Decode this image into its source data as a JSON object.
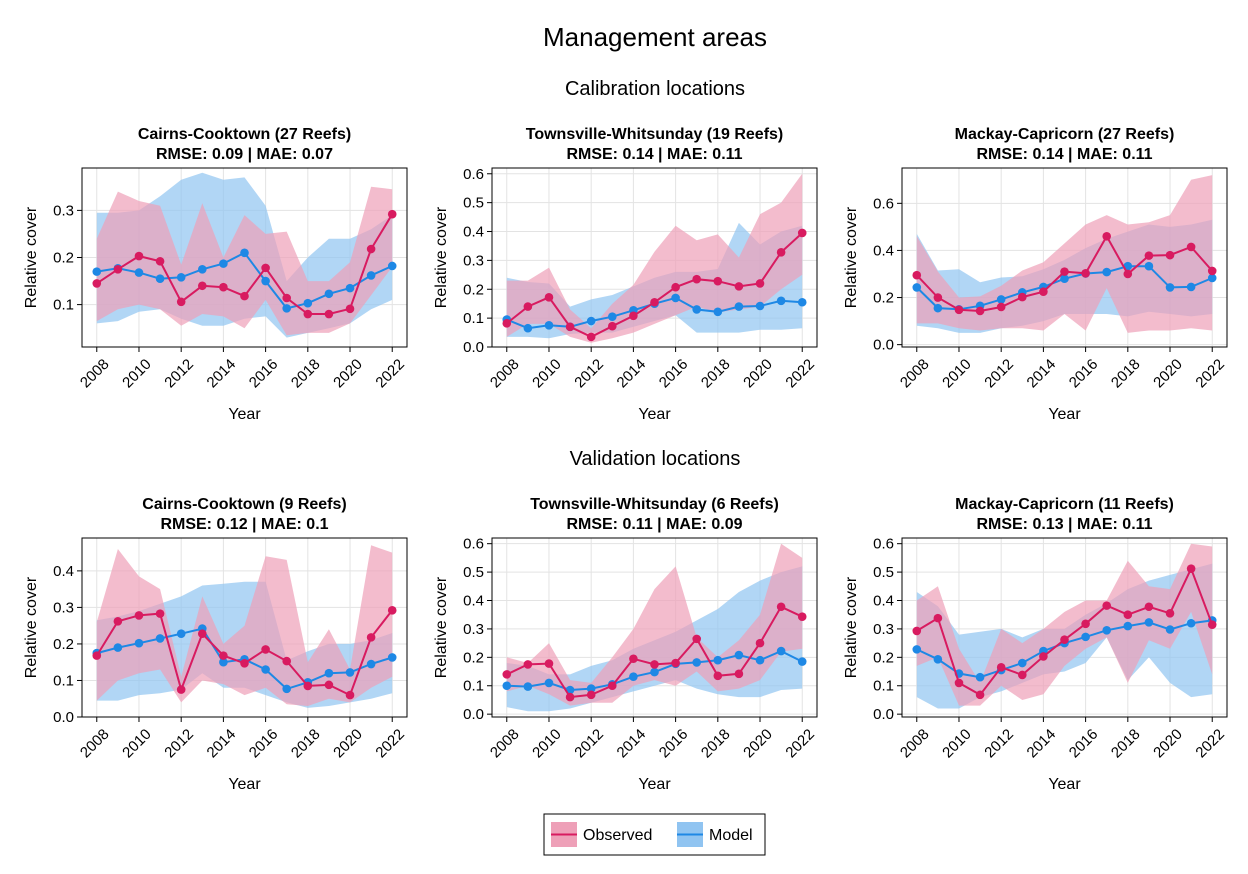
{
  "figure": {
    "title": "Management areas",
    "row_titles": [
      "Calibration locations",
      "Validation locations"
    ]
  },
  "colors": {
    "observed": "#d81b60",
    "observed_band": "#eea0b8",
    "model": "#1e88e5",
    "model_band": "#90c4f1",
    "grid": "#e3e3e3"
  },
  "legend": {
    "entries": [
      {
        "label": "Observed",
        "color": "#d81b60"
      },
      {
        "label": "Model",
        "color": "#1e88e5"
      }
    ]
  },
  "chart_data": [
    {
      "type": "line",
      "title": "Cairns-Cooktown (27 Reefs)",
      "subtitle": "RMSE: 0.09 | MAE: 0.07",
      "xlabel": "Year",
      "ylabel": "Relative cover",
      "xlim": [
        2007.3,
        2022.7
      ],
      "ylim": [
        0.01,
        0.39
      ],
      "yticks": [
        0.1,
        0.2,
        0.3
      ],
      "yticklabels": [
        "0.1",
        "0.2",
        "0.3"
      ],
      "xticks": [
        2008,
        2010,
        2012,
        2014,
        2016,
        2018,
        2020,
        2022
      ],
      "x": [
        2008,
        2009,
        2010,
        2011,
        2012,
        2013,
        2014,
        2015,
        2016,
        2017,
        2018,
        2019,
        2020,
        2021,
        2022
      ],
      "series": [
        {
          "name": "Observed",
          "values": [
            0.145,
            0.175,
            0.203,
            0.192,
            0.106,
            0.14,
            0.137,
            0.118,
            0.178,
            0.114,
            0.08,
            0.08,
            0.091,
            0.218,
            0.292
          ],
          "lower": [
            0.065,
            0.09,
            0.1,
            0.09,
            0.055,
            0.08,
            0.075,
            0.05,
            0.11,
            0.035,
            0.04,
            0.04,
            0.06,
            0.12,
            0.18
          ],
          "upper": [
            0.24,
            0.34,
            0.32,
            0.31,
            0.185,
            0.315,
            0.2,
            0.29,
            0.25,
            0.255,
            0.15,
            0.15,
            0.19,
            0.35,
            0.345
          ]
        },
        {
          "name": "Model",
          "values": [
            0.17,
            0.177,
            0.168,
            0.155,
            0.158,
            0.175,
            0.187,
            0.21,
            0.15,
            0.092,
            0.103,
            0.123,
            0.135,
            0.162,
            0.182
          ],
          "lower": [
            0.06,
            0.065,
            0.085,
            0.09,
            0.07,
            0.055,
            0.055,
            0.07,
            0.075,
            0.03,
            0.04,
            0.05,
            0.06,
            0.09,
            0.11
          ],
          "upper": [
            0.295,
            0.295,
            0.3,
            0.33,
            0.365,
            0.38,
            0.365,
            0.37,
            0.31,
            0.15,
            0.2,
            0.24,
            0.24,
            0.26,
            0.29
          ]
        }
      ]
    },
    {
      "type": "line",
      "title": "Townsville-Whitsunday (19 Reefs)",
      "subtitle": "RMSE: 0.14 | MAE: 0.11",
      "xlabel": "Year",
      "ylabel": "Relative cover",
      "xlim": [
        2007.3,
        2022.7
      ],
      "ylim": [
        0.0,
        0.62
      ],
      "yticks": [
        0.0,
        0.1,
        0.2,
        0.3,
        0.4,
        0.5,
        0.6
      ],
      "yticklabels": [
        "0.0",
        "0.1",
        "0.2",
        "0.3",
        "0.4",
        "0.5",
        "0.6"
      ],
      "xticks": [
        2008,
        2010,
        2012,
        2014,
        2016,
        2018,
        2020,
        2022
      ],
      "x": [
        2008,
        2009,
        2010,
        2011,
        2012,
        2013,
        2014,
        2015,
        2016,
        2017,
        2018,
        2019,
        2020,
        2021,
        2022
      ],
      "series": [
        {
          "name": "Observed",
          "values": [
            0.082,
            0.14,
            0.172,
            0.07,
            0.035,
            0.072,
            0.108,
            0.155,
            0.207,
            0.235,
            0.228,
            0.21,
            0.22,
            0.328,
            0.395
          ],
          "lower": [
            0.035,
            0.08,
            0.08,
            0.035,
            0.015,
            0.03,
            0.05,
            0.08,
            0.11,
            0.14,
            0.12,
            0.13,
            0.14,
            0.2,
            0.25
          ],
          "upper": [
            0.23,
            0.23,
            0.275,
            0.13,
            0.065,
            0.15,
            0.215,
            0.33,
            0.42,
            0.37,
            0.39,
            0.31,
            0.46,
            0.5,
            0.6
          ]
        },
        {
          "name": "Model",
          "values": [
            0.095,
            0.065,
            0.075,
            0.07,
            0.09,
            0.105,
            0.127,
            0.15,
            0.17,
            0.13,
            0.122,
            0.14,
            0.142,
            0.16,
            0.155
          ],
          "lower": [
            0.035,
            0.035,
            0.03,
            0.045,
            0.05,
            0.05,
            0.07,
            0.09,
            0.11,
            0.05,
            0.05,
            0.05,
            0.06,
            0.06,
            0.065
          ],
          "upper": [
            0.24,
            0.225,
            0.22,
            0.14,
            0.165,
            0.18,
            0.21,
            0.24,
            0.26,
            0.26,
            0.27,
            0.43,
            0.355,
            0.4,
            0.42
          ]
        }
      ]
    },
    {
      "type": "line",
      "title": "Mackay-Capricorn (27 Reefs)",
      "subtitle": "RMSE: 0.14 | MAE: 0.11",
      "xlabel": "Year",
      "ylabel": "Relative cover",
      "xlim": [
        2007.3,
        2022.7
      ],
      "ylim": [
        -0.01,
        0.75
      ],
      "yticks": [
        0.0,
        0.2,
        0.4,
        0.6
      ],
      "yticklabels": [
        "0.0",
        "0.2",
        "0.4",
        "0.6"
      ],
      "xticks": [
        2008,
        2010,
        2012,
        2014,
        2016,
        2018,
        2020,
        2022
      ],
      "x": [
        2008,
        2009,
        2010,
        2011,
        2012,
        2013,
        2014,
        2015,
        2016,
        2017,
        2018,
        2019,
        2020,
        2021,
        2022
      ],
      "series": [
        {
          "name": "Observed",
          "values": [
            0.295,
            0.2,
            0.148,
            0.143,
            0.16,
            0.202,
            0.225,
            0.31,
            0.303,
            0.46,
            0.3,
            0.378,
            0.38,
            0.415,
            0.313
          ],
          "lower": [
            0.09,
            0.09,
            0.07,
            0.06,
            0.07,
            0.07,
            0.06,
            0.13,
            0.06,
            0.24,
            0.05,
            0.06,
            0.06,
            0.07,
            0.06
          ],
          "upper": [
            0.46,
            0.31,
            0.2,
            0.205,
            0.25,
            0.315,
            0.35,
            0.43,
            0.51,
            0.55,
            0.51,
            0.52,
            0.55,
            0.7,
            0.72
          ]
        },
        {
          "name": "Model",
          "values": [
            0.243,
            0.155,
            0.15,
            0.165,
            0.192,
            0.222,
            0.245,
            0.28,
            0.302,
            0.308,
            0.333,
            0.333,
            0.243,
            0.245,
            0.283
          ],
          "lower": [
            0.08,
            0.07,
            0.05,
            0.05,
            0.07,
            0.08,
            0.1,
            0.13,
            0.13,
            0.13,
            0.12,
            0.14,
            0.13,
            0.12,
            0.13
          ],
          "upper": [
            0.47,
            0.315,
            0.32,
            0.265,
            0.285,
            0.29,
            0.32,
            0.36,
            0.41,
            0.45,
            0.48,
            0.51,
            0.5,
            0.51,
            0.53
          ]
        }
      ]
    },
    {
      "type": "line",
      "title": "Cairns-Cooktown (9 Reefs)",
      "subtitle": "RMSE: 0.12 | MAE: 0.1",
      "xlabel": "Year",
      "ylabel": "Relative cover",
      "xlim": [
        2007.3,
        2022.7
      ],
      "ylim": [
        0.0,
        0.49
      ],
      "yticks": [
        0.0,
        0.1,
        0.2,
        0.3,
        0.4
      ],
      "yticklabels": [
        "0.0",
        "0.1",
        "0.2",
        "0.3",
        "0.4"
      ],
      "xticks": [
        2008,
        2010,
        2012,
        2014,
        2016,
        2018,
        2020,
        2022
      ],
      "x": [
        2008,
        2009,
        2010,
        2011,
        2012,
        2013,
        2014,
        2015,
        2016,
        2017,
        2018,
        2019,
        2020,
        2021,
        2022
      ],
      "series": [
        {
          "name": "Observed",
          "values": [
            0.168,
            0.262,
            0.278,
            0.283,
            0.075,
            0.228,
            0.168,
            0.147,
            0.185,
            0.153,
            0.085,
            0.088,
            0.06,
            0.218,
            0.292
          ],
          "lower": [
            0.045,
            0.1,
            0.12,
            0.13,
            0.04,
            0.1,
            0.09,
            0.06,
            0.08,
            0.035,
            0.03,
            0.05,
            0.04,
            0.08,
            0.11
          ],
          "upper": [
            0.26,
            0.46,
            0.385,
            0.35,
            0.11,
            0.33,
            0.2,
            0.25,
            0.44,
            0.43,
            0.15,
            0.24,
            0.13,
            0.47,
            0.45
          ]
        },
        {
          "name": "Model",
          "values": [
            0.175,
            0.19,
            0.202,
            0.215,
            0.228,
            0.242,
            0.15,
            0.158,
            0.13,
            0.077,
            0.095,
            0.12,
            0.122,
            0.145,
            0.163
          ],
          "lower": [
            0.045,
            0.045,
            0.06,
            0.065,
            0.075,
            0.12,
            0.08,
            0.08,
            0.06,
            0.04,
            0.025,
            0.03,
            0.04,
            0.05,
            0.065
          ],
          "upper": [
            0.265,
            0.275,
            0.29,
            0.31,
            0.33,
            0.36,
            0.365,
            0.37,
            0.37,
            0.155,
            0.18,
            0.2,
            0.2,
            0.21,
            0.23
          ]
        }
      ]
    },
    {
      "type": "line",
      "title": "Townsville-Whitsunday (6 Reefs)",
      "subtitle": "RMSE: 0.11 | MAE: 0.09",
      "xlabel": "Year",
      "ylabel": "Relative cover",
      "xlim": [
        2007.3,
        2022.7
      ],
      "ylim": [
        -0.01,
        0.62
      ],
      "yticks": [
        0.0,
        0.1,
        0.2,
        0.3,
        0.4,
        0.5,
        0.6
      ],
      "yticklabels": [
        "0.0",
        "0.1",
        "0.2",
        "0.3",
        "0.4",
        "0.5",
        "0.6"
      ],
      "xticks": [
        2008,
        2010,
        2012,
        2014,
        2016,
        2018,
        2020,
        2022
      ],
      "x": [
        2008,
        2009,
        2010,
        2011,
        2012,
        2013,
        2014,
        2015,
        2016,
        2017,
        2018,
        2019,
        2020,
        2021,
        2022
      ],
      "series": [
        {
          "name": "Observed",
          "values": [
            0.14,
            0.175,
            0.178,
            0.06,
            0.068,
            0.1,
            0.195,
            0.175,
            0.18,
            0.265,
            0.135,
            0.142,
            0.25,
            0.378,
            0.343
          ],
          "lower": [
            0.08,
            0.1,
            0.07,
            0.03,
            0.04,
            0.04,
            0.1,
            0.12,
            0.1,
            0.15,
            0.08,
            0.09,
            0.12,
            0.22,
            0.23
          ],
          "upper": [
            0.2,
            0.18,
            0.25,
            0.12,
            0.11,
            0.2,
            0.3,
            0.44,
            0.52,
            0.27,
            0.2,
            0.26,
            0.35,
            0.6,
            0.55
          ]
        },
        {
          "name": "Model",
          "values": [
            0.1,
            0.097,
            0.11,
            0.085,
            0.09,
            0.105,
            0.132,
            0.148,
            0.177,
            0.182,
            0.19,
            0.208,
            0.19,
            0.222,
            0.185
          ],
          "lower": [
            0.025,
            0.01,
            0.01,
            0.02,
            0.04,
            0.06,
            0.08,
            0.1,
            0.12,
            0.09,
            0.07,
            0.06,
            0.06,
            0.085,
            0.09
          ],
          "upper": [
            0.18,
            0.17,
            0.14,
            0.14,
            0.17,
            0.19,
            0.23,
            0.26,
            0.29,
            0.33,
            0.37,
            0.43,
            0.47,
            0.5,
            0.52
          ]
        }
      ]
    },
    {
      "type": "line",
      "title": "Mackay-Capricorn (11 Reefs)",
      "subtitle": "RMSE: 0.13 | MAE: 0.11",
      "xlabel": "Year",
      "ylabel": "Relative cover",
      "xlim": [
        2007.3,
        2022.7
      ],
      "ylim": [
        -0.01,
        0.62
      ],
      "yticks": [
        0.0,
        0.1,
        0.2,
        0.3,
        0.4,
        0.5,
        0.6
      ],
      "yticklabels": [
        "0.0",
        "0.1",
        "0.2",
        "0.3",
        "0.4",
        "0.5",
        "0.6"
      ],
      "xticks": [
        2008,
        2010,
        2012,
        2014,
        2016,
        2018,
        2020,
        2022
      ],
      "x": [
        2008,
        2009,
        2010,
        2011,
        2012,
        2013,
        2014,
        2015,
        2016,
        2017,
        2018,
        2019,
        2020,
        2021,
        2022
      ],
      "series": [
        {
          "name": "Observed",
          "values": [
            0.293,
            0.338,
            0.11,
            0.068,
            0.165,
            0.138,
            0.203,
            0.262,
            0.318,
            0.382,
            0.35,
            0.378,
            0.355,
            0.512,
            0.315
          ],
          "lower": [
            0.17,
            0.2,
            0.03,
            0.03,
            0.1,
            0.05,
            0.07,
            0.17,
            0.23,
            0.27,
            0.11,
            0.26,
            0.23,
            0.36,
            0.14
          ],
          "upper": [
            0.4,
            0.45,
            0.23,
            0.11,
            0.3,
            0.25,
            0.3,
            0.36,
            0.4,
            0.4,
            0.54,
            0.45,
            0.44,
            0.6,
            0.59
          ]
        },
        {
          "name": "Model",
          "values": [
            0.228,
            0.193,
            0.143,
            0.13,
            0.155,
            0.18,
            0.222,
            0.25,
            0.272,
            0.295,
            0.31,
            0.323,
            0.298,
            0.32,
            0.33
          ],
          "lower": [
            0.06,
            0.02,
            0.02,
            0.06,
            0.08,
            0.11,
            0.14,
            0.15,
            0.18,
            0.27,
            0.12,
            0.2,
            0.11,
            0.06,
            0.07
          ],
          "upper": [
            0.43,
            0.38,
            0.28,
            0.29,
            0.3,
            0.27,
            0.3,
            0.3,
            0.35,
            0.39,
            0.44,
            0.47,
            0.49,
            0.51,
            0.53
          ]
        }
      ]
    }
  ]
}
